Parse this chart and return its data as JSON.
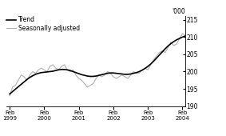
{
  "ylabel": "'000",
  "ylim": [
    190,
    216
  ],
  "yticks": [
    190,
    195,
    200,
    205,
    210,
    215
  ],
  "legend_entries": [
    "Trend",
    "Seasonally adjusted"
  ],
  "trend_color": "#000000",
  "seasonal_color": "#b0b0b0",
  "background_color": "#ffffff",
  "trend_lw": 1.2,
  "seasonal_lw": 0.8,
  "trend_data": [
    193.5,
    194.2,
    194.9,
    195.6,
    196.3,
    197.0,
    197.7,
    198.3,
    198.8,
    199.2,
    199.5,
    199.7,
    199.8,
    199.9,
    200.0,
    200.1,
    200.3,
    200.5,
    200.6,
    200.6,
    200.5,
    200.3,
    200.0,
    199.7,
    199.4,
    199.1,
    198.9,
    198.7,
    198.6,
    198.6,
    198.7,
    198.9,
    199.1,
    199.3,
    199.5,
    199.6,
    199.6,
    199.5,
    199.4,
    199.3,
    199.2,
    199.2,
    199.3,
    199.5,
    199.7,
    200.0,
    200.4,
    200.9,
    201.5,
    202.2,
    203.0,
    203.9,
    204.8,
    205.7,
    206.6,
    207.4,
    208.1,
    208.7,
    209.2,
    209.6,
    210.0,
    210.3
  ],
  "seasonal_data": [
    193.0,
    195.5,
    196.0,
    197.5,
    199.0,
    198.5,
    197.5,
    199.0,
    200.0,
    199.5,
    200.5,
    201.0,
    200.5,
    200.0,
    201.5,
    202.0,
    201.0,
    200.5,
    201.5,
    202.0,
    200.5,
    200.0,
    200.5,
    199.0,
    198.0,
    197.5,
    196.5,
    195.5,
    196.0,
    196.5,
    198.0,
    199.0,
    198.5,
    199.0,
    200.0,
    199.5,
    198.5,
    198.0,
    198.5,
    199.0,
    198.5,
    198.0,
    199.0,
    200.0,
    199.5,
    199.5,
    200.5,
    201.0,
    200.5,
    202.0,
    203.5,
    204.5,
    205.5,
    206.0,
    205.5,
    207.0,
    208.5,
    207.5,
    208.0,
    209.5,
    211.0,
    210.5
  ],
  "n_points": 62,
  "x_tick_positions": [
    0,
    12,
    24,
    36,
    48,
    60
  ],
  "x_tick_labels": [
    "Feb\n1999",
    "Feb\n2000",
    "Feb\n2001",
    "Feb\n2002",
    "Feb\n2003",
    "Feb\n2004"
  ]
}
